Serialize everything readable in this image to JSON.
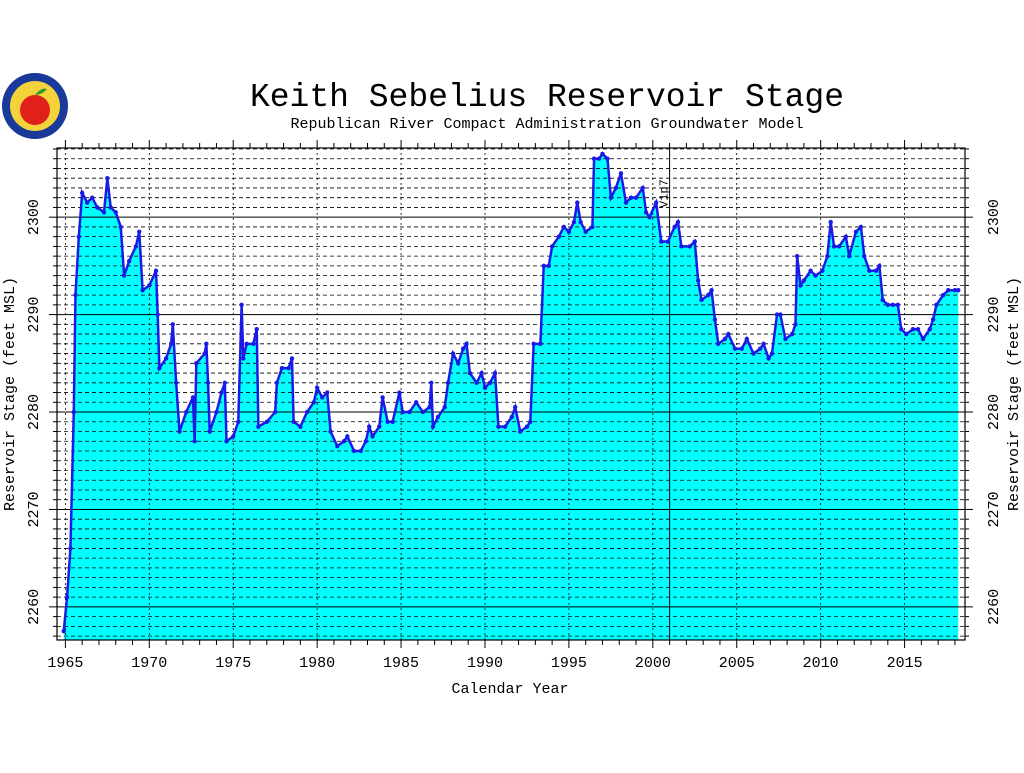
{
  "chart_data": {
    "type": "area",
    "title": "Keith Sebelius Reservoir Stage",
    "subtitle": "Republican River Compact Administration Groundwater Model",
    "x_label": "Calendar Year",
    "y_label": "Reservoir Stage (feet MSL)",
    "annotation": {
      "text": "V1p7",
      "x": 2001.0
    },
    "color": "#00ffff",
    "line_color": "#1a1ae6",
    "xlim": [
      1964.5,
      2018.6
    ],
    "xticks": [
      1965,
      1970,
      1975,
      1980,
      1985,
      1990,
      1995,
      2000,
      2005,
      2010,
      2015
    ],
    "xminorticks": [
      1966,
      1967,
      1968,
      1969,
      1971,
      1972,
      1973,
      1974,
      1976,
      1977,
      1978,
      1979,
      1981,
      1982,
      1983,
      1984,
      1986,
      1987,
      1988,
      1989,
      1991,
      1992,
      1993,
      1994,
      1996,
      1997,
      1998,
      1999,
      2001,
      2002,
      2003,
      2004,
      2006,
      2007,
      2008,
      2009,
      2011,
      2012,
      2013,
      2014,
      2016,
      2017,
      2018
    ],
    "ylim": [
      2256.6,
      2307.1
    ],
    "yticks": [
      2260,
      2270,
      2280,
      2290,
      2300
    ],
    "yminorticks": [
      2257,
      2258,
      2259,
      2261,
      2262,
      2263,
      2264,
      2265,
      2266,
      2267,
      2268,
      2269,
      2271,
      2272,
      2273,
      2274,
      2275,
      2276,
      2277,
      2278,
      2279,
      2281,
      2282,
      2283,
      2284,
      2285,
      2286,
      2287,
      2288,
      2289,
      2291,
      2292,
      2293,
      2294,
      2295,
      2296,
      2297,
      2298,
      2299,
      2301,
      2302,
      2303,
      2304,
      2305,
      2306,
      2307
    ],
    "grid": true,
    "x": [
      1964.9,
      1965.1,
      1965.3,
      1965.5,
      1965.6,
      1965.8,
      1966.0,
      1966.3,
      1966.6,
      1966.9,
      1967.3,
      1967.5,
      1967.7,
      1968.0,
      1968.3,
      1968.5,
      1968.8,
      1969.2,
      1969.4,
      1969.6,
      1970.0,
      1970.4,
      1970.5,
      1970.6,
      1971.0,
      1971.3,
      1971.4,
      1971.6,
      1971.8,
      1972.2,
      1972.6,
      1972.7,
      1972.8,
      1973.3,
      1973.4,
      1973.5,
      1973.6,
      1974.0,
      1974.3,
      1974.5,
      1974.6,
      1975.0,
      1975.3,
      1975.5,
      1975.6,
      1975.8,
      1976.2,
      1976.4,
      1976.5,
      1977.0,
      1977.5,
      1977.6,
      1977.9,
      1978.3,
      1978.5,
      1978.6,
      1979.0,
      1979.4,
      1979.8,
      1980.0,
      1980.3,
      1980.6,
      1980.8,
      1981.2,
      1981.6,
      1981.8,
      1982.2,
      1982.6,
      1982.9,
      1983.1,
      1983.3,
      1983.7,
      1983.9,
      1984.2,
      1984.5,
      1984.9,
      1985.1,
      1985.5,
      1985.9,
      1986.3,
      1986.7,
      1986.8,
      1986.9,
      1987.2,
      1987.6,
      1987.8,
      1988.1,
      1988.4,
      1988.7,
      1988.9,
      1989.1,
      1989.5,
      1989.8,
      1990.0,
      1990.3,
      1990.6,
      1990.8,
      1991.2,
      1991.6,
      1991.8,
      1992.1,
      1992.5,
      1992.7,
      1992.9,
      1993.3,
      1993.5,
      1993.8,
      1994.0,
      1994.4,
      1994.7,
      1995.0,
      1995.3,
      1995.5,
      1995.7,
      1996.0,
      1996.4,
      1996.5,
      1996.8,
      1997.0,
      1997.3,
      1997.5,
      1997.8,
      1998.1,
      1998.4,
      1998.7,
      1999.0,
      1999.4,
      1999.6,
      1999.8,
      2000.2,
      2000.5,
      2000.9,
      2001.3,
      2001.5,
      2001.7,
      2002.2,
      2002.5,
      2002.7,
      2002.9,
      2003.3,
      2003.5,
      2003.7,
      2003.9,
      2004.3,
      2004.5,
      2004.9,
      2005.3,
      2005.6,
      2006.0,
      2006.4,
      2006.6,
      2006.9,
      2007.1,
      2007.4,
      2007.6,
      2007.9,
      2008.3,
      2008.5,
      2008.6,
      2008.8,
      2009.0,
      2009.4,
      2009.7,
      2010.1,
      2010.4,
      2010.6,
      2010.8,
      2011.1,
      2011.5,
      2011.7,
      2012.1,
      2012.4,
      2012.6,
      2012.9,
      2013.3,
      2013.5,
      2013.7,
      2014.0,
      2014.3,
      2014.6,
      2014.8,
      2015.1,
      2015.5,
      2015.8,
      2016.1,
      2016.5,
      2016.7,
      2016.9,
      2017.3,
      2017.6,
      2018.0,
      2018.2
    ],
    "values": [
      2257.5,
      2261,
      2266,
      2280,
      2292,
      2298,
      2302.5,
      2301.5,
      2302,
      2301,
      2300.5,
      2304,
      2301,
      2300.5,
      2299,
      2294,
      2295.5,
      2297,
      2298.5,
      2292.5,
      2293,
      2294.5,
      2290,
      2284.5,
      2285.5,
      2287,
      2289,
      2283,
      2278,
      2280,
      2281.5,
      2277,
      2285,
      2286,
      2287,
      2283,
      2278,
      2280,
      2282,
      2283,
      2277,
      2277.5,
      2279,
      2291,
      2285.5,
      2287,
      2287,
      2288.5,
      2278.5,
      2279,
      2280,
      2283,
      2284.5,
      2284.5,
      2285.5,
      2279,
      2278.5,
      2280,
      2281,
      2282.5,
      2281.5,
      2282,
      2278,
      2276.5,
      2277,
      2277.5,
      2276,
      2276,
      2277,
      2278.5,
      2277.5,
      2278.5,
      2281.5,
      2279,
      2279,
      2282,
      2280,
      2280,
      2281,
      2280,
      2280.5,
      2283,
      2278.5,
      2279.5,
      2280.5,
      2283,
      2286,
      2285,
      2286.5,
      2287,
      2284,
      2283,
      2284,
      2282.5,
      2283,
      2284,
      2278.5,
      2278.5,
      2279.5,
      2280.5,
      2278,
      2278.5,
      2279,
      2287,
      2287,
      2295,
      2295,
      2297,
      2298,
      2299,
      2298.5,
      2299.5,
      2301.5,
      2299.5,
      2298.5,
      2299,
      2306,
      2306,
      2306.5,
      2306,
      2302,
      2303,
      2304.5,
      2301.5,
      2302,
      2302,
      2303,
      2300.5,
      2300,
      2301.5,
      2297.5,
      2297.5,
      2299,
      2299.5,
      2297,
      2297,
      2297.5,
      2293.5,
      2291.5,
      2292,
      2292.5,
      2289.5,
      2287,
      2287.5,
      2288,
      2286.5,
      2286.5,
      2287.5,
      2286,
      2286.5,
      2287,
      2285.5,
      2286,
      2290,
      2290,
      2287.5,
      2288,
      2289,
      2296,
      2293,
      2293.5,
      2294.5,
      2294,
      2294.5,
      2296,
      2299.5,
      2297,
      2297,
      2298,
      2296,
      2298.5,
      2299,
      2296,
      2294.5,
      2294.5,
      2295,
      2291.5,
      2291,
      2291,
      2291,
      2288.5,
      2288,
      2288.5,
      2288.5,
      2287.5,
      2288.5,
      2289.5,
      2291,
      2292,
      2292.5,
      2292.5,
      2292.5
    ]
  }
}
